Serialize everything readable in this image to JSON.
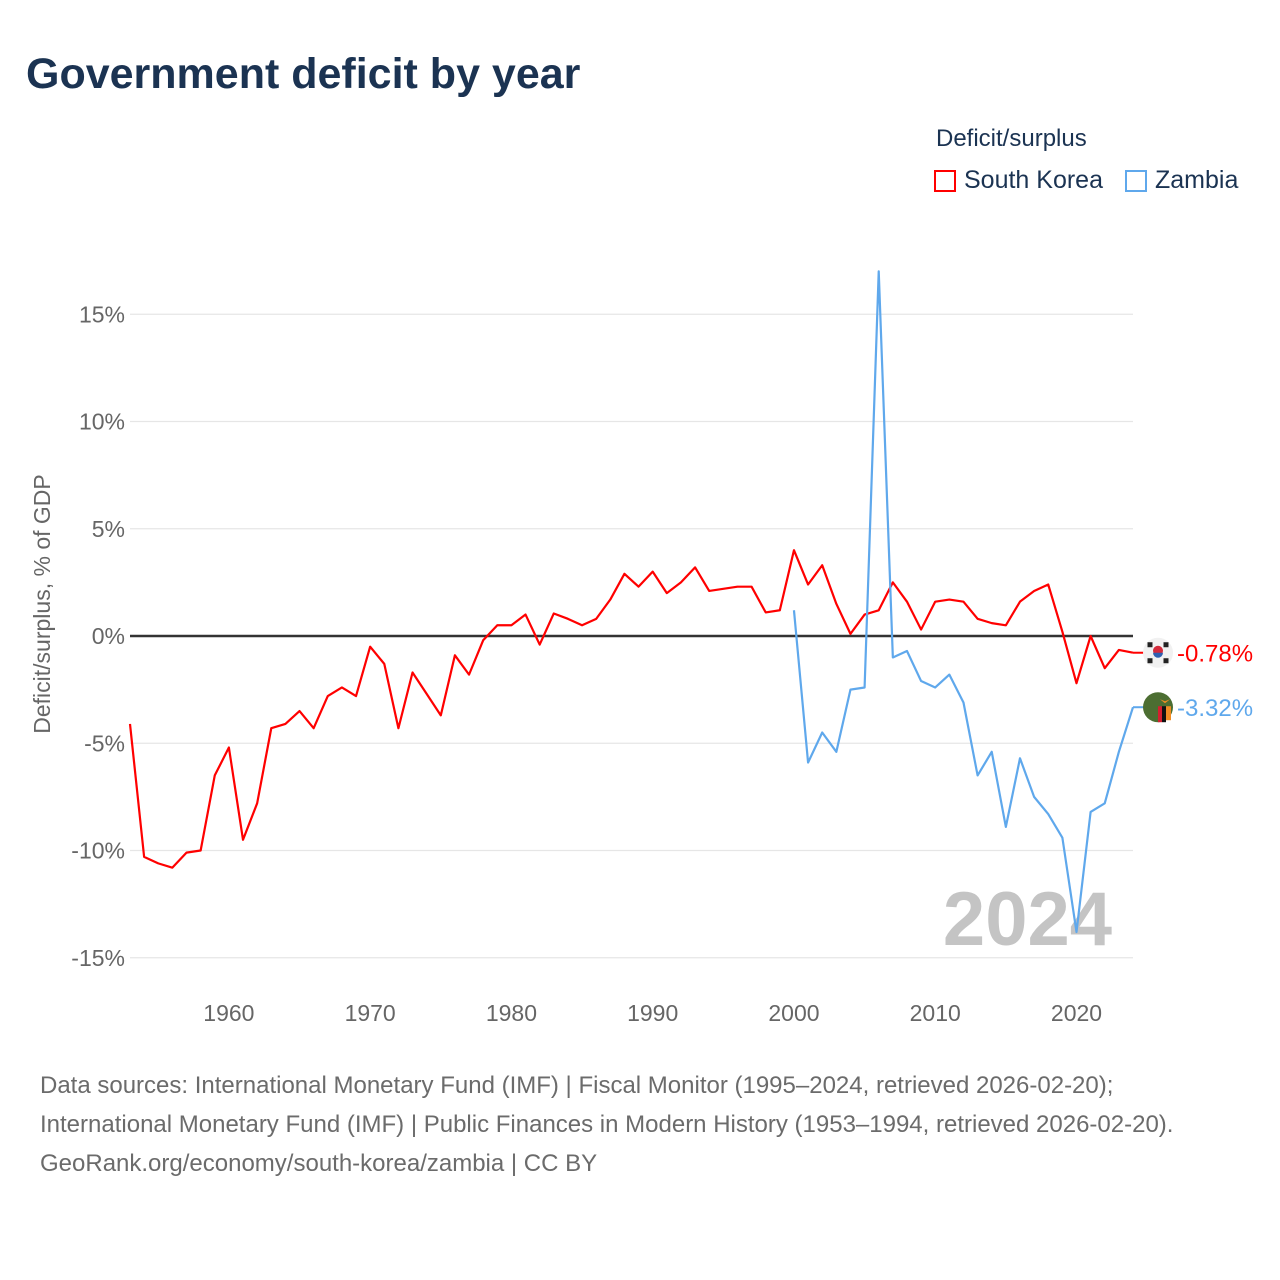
{
  "title": "Government deficit by year",
  "legend": {
    "title": "Deficit/surplus",
    "items": [
      {
        "name": "South Korea",
        "color": "#ff0000"
      },
      {
        "name": "Zambia",
        "color": "#5fa8ec"
      }
    ]
  },
  "chart_data": {
    "type": "line",
    "title": "Government deficit by year",
    "ylabel": "Deficit/surplus, % of GDP",
    "xlabel": "",
    "xlim": [
      1953,
      2024
    ],
    "ylim": [
      -16.5,
      18
    ],
    "yticks": [
      -15,
      -10,
      -5,
      0,
      5,
      10,
      15
    ],
    "ytick_labels": [
      "-15%",
      "-10%",
      "-5%",
      "0%",
      "5%",
      "10%",
      "15%"
    ],
    "xticks": [
      1960,
      1970,
      1980,
      1990,
      2000,
      2010,
      2020
    ],
    "xtick_labels": [
      "1960",
      "1970",
      "1980",
      "1990",
      "2000",
      "2010",
      "2020"
    ],
    "year_label": "2024",
    "grid": true,
    "legend_position": "top-right",
    "series": [
      {
        "name": "South Korea",
        "color": "#ff0000",
        "start_year": 1953,
        "end_label": "-0.78%",
        "values": [
          -4.1,
          -10.3,
          -10.6,
          -10.8,
          -10.1,
          -10.0,
          -6.5,
          -5.2,
          -9.5,
          -7.8,
          -4.3,
          -4.1,
          -3.5,
          -4.3,
          -2.8,
          -2.4,
          -2.8,
          -0.5,
          -1.3,
          -4.3,
          -1.7,
          -2.7,
          -3.7,
          -0.9,
          -1.8,
          -0.2,
          0.5,
          0.5,
          1.0,
          -0.4,
          1.05,
          0.8,
          0.5,
          0.8,
          1.7,
          2.9,
          2.3,
          3.0,
          2.0,
          2.5,
          3.2,
          2.1,
          2.2,
          2.3,
          2.3,
          1.1,
          1.2,
          4.0,
          2.4,
          3.3,
          1.5,
          0.1,
          1.0,
          1.2,
          2.5,
          1.6,
          0.3,
          1.6,
          1.7,
          1.6,
          0.8,
          0.6,
          0.5,
          1.6,
          2.1,
          2.4,
          0.2,
          -2.2,
          0.0,
          -1.5,
          -0.65,
          -0.78
        ]
      },
      {
        "name": "Zambia",
        "color": "#5fa8ec",
        "start_year": 2000,
        "end_label": "-3.32%",
        "values": [
          1.2,
          -5.9,
          -4.5,
          -5.4,
          -2.5,
          -2.4,
          17.0,
          -1.0,
          -0.7,
          -2.1,
          -2.4,
          -1.8,
          -3.1,
          -6.5,
          -5.4,
          -8.9,
          -5.7,
          -7.5,
          -8.3,
          -9.4,
          -13.8,
          -8.2,
          -7.8,
          -5.4,
          -3.32
        ]
      }
    ]
  },
  "footer": {
    "sources": "Data sources: International Monetary Fund (IMF) | Fiscal Monitor (1995–2024, retrieved 2026-02-20); International Monetary Fund (IMF) | Public Finances in Modern History (1953–1994, retrieved 2026-02-20).",
    "credit": "GeoRank.org/economy/south-korea/zambia | CC BY"
  }
}
